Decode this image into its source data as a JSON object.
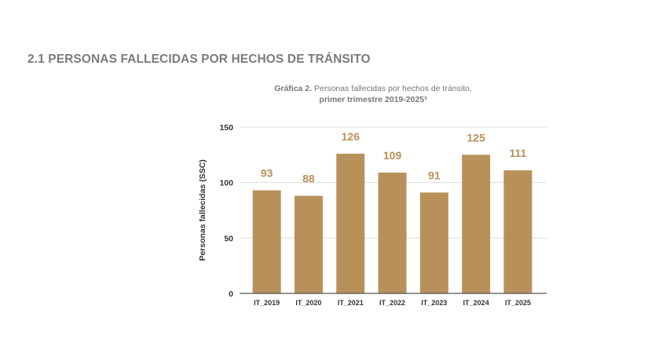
{
  "section_title": "2.1 PERSONAS FALLECIDAS POR HECHOS DE TRÁNSITO",
  "chart_data": {
    "type": "bar",
    "title_prefix": "Gráfica 2.",
    "title": "Personas fallecidas por hechos de tránsito,",
    "subtitle": "primer trimestre 2019-2025³",
    "xlabel": "",
    "ylabel": "Personas fallecidas (SSC)",
    "categories": [
      "IT_2019",
      "IT_2020",
      "IT_2021",
      "IT_2022",
      "IT_2023",
      "IT_2024",
      "IT_2025"
    ],
    "values": [
      93,
      88,
      126,
      109,
      91,
      125,
      111
    ],
    "data_labels": [
      "93",
      "88",
      "126",
      "109",
      "91",
      "125",
      "111"
    ],
    "ylim": [
      0,
      150
    ],
    "yticks": [
      "0",
      "50",
      "100",
      "150"
    ],
    "grid": true,
    "legend": "none",
    "colors": {
      "bar": "#b8915a",
      "label": "#b8915a",
      "title": "#777777",
      "axis_text": "#333333"
    }
  }
}
